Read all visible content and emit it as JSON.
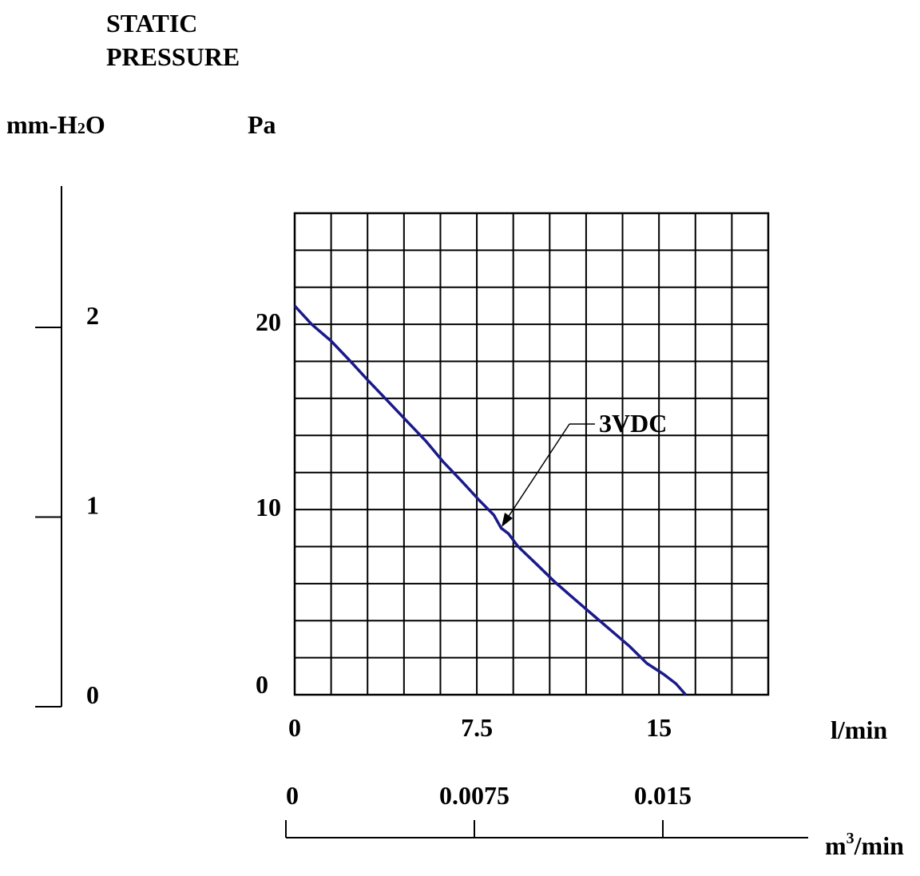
{
  "chart_data": {
    "type": "line",
    "title_line1": "STATIC",
    "title_line2": "PRESSURE",
    "left_unit": "mm-H",
    "left_unit_sub": "2",
    "left_unit_end": "O",
    "pa_unit": "Pa",
    "xlabel": "l/min",
    "x2_unit": "m",
    "x2_unit_sup": "3",
    "x2_unit_end": "/min",
    "x_ticks": [
      {
        "value": 0,
        "label": "0"
      },
      {
        "value": 7.5,
        "label": "7.5"
      },
      {
        "value": 15,
        "label": "15"
      }
    ],
    "y_ticks": [
      {
        "value": 0,
        "label": "0"
      },
      {
        "value": 10,
        "label": "10"
      },
      {
        "value": 20,
        "label": "20"
      }
    ],
    "mm_ticks": [
      {
        "value": 0,
        "label": "0"
      },
      {
        "value": 1,
        "label": "1"
      },
      {
        "value": 2,
        "label": "2"
      }
    ],
    "m3_ticks": [
      {
        "value": 0,
        "label": "0"
      },
      {
        "value": 0.0075,
        "label": "0.0075"
      },
      {
        "value": 0.015,
        "label": "0.015"
      }
    ],
    "xlim": [
      0,
      19.5
    ],
    "ylim": [
      0,
      26
    ],
    "grid": true,
    "grid_cols": 13,
    "grid_rows": 13,
    "series": [
      {
        "name": "3VDC",
        "color": "#1a1a8a",
        "x": [
          0,
          0.7,
          1.5,
          2.3,
          3.0,
          3.8,
          4.6,
          5.4,
          6.1,
          6.9,
          7.6,
          8.2,
          8.5,
          8.8,
          9.2,
          10.0,
          10.7,
          11.4,
          12.2,
          13.0,
          13.8,
          14.5,
          15.2,
          15.7,
          16.1
        ],
        "y": [
          21.0,
          20.0,
          19.1,
          18.0,
          17.0,
          15.9,
          14.8,
          13.7,
          12.6,
          11.5,
          10.5,
          9.7,
          9.0,
          8.7,
          8.0,
          7.0,
          6.1,
          5.3,
          4.4,
          3.5,
          2.6,
          1.7,
          1.1,
          0.6,
          0
        ]
      }
    ]
  }
}
